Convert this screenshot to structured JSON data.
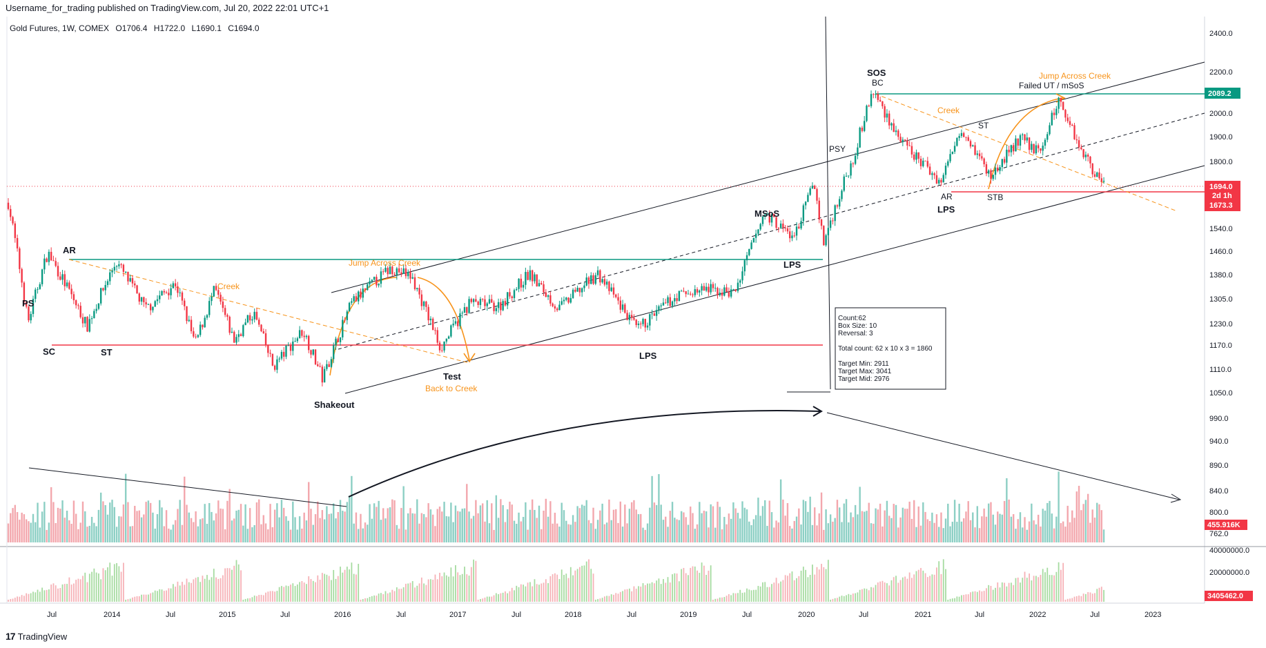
{
  "header": {
    "published": "Username_for_trading published on TradingView.com, Jul 20, 2022 22:01 UTC+1",
    "symbol": "Gold Futures, 1W, COMEX",
    "open": "O1706.4",
    "high": "H1722.0",
    "low": "L1690.1",
    "close": "C1694.0"
  },
  "footer": {
    "logo": "17",
    "brand": "TradingView"
  },
  "chart_data": {
    "type": "candlestick",
    "price_axis": {
      "labels": [
        "2400.0",
        "2200.0",
        "2089.2",
        "2000.0",
        "1900.0",
        "1800.0",
        "1694.0",
        "1673.3",
        "1540.0",
        "1460.0",
        "1380.0",
        "1305.0",
        "1230.0",
        "1170.0",
        "1110.0",
        "1050.0",
        "990.0",
        "940.0",
        "890.0",
        "840.0",
        "800.0",
        "762.0"
      ],
      "log_scale": true
    },
    "volume_axis_value": "455.916K",
    "indicator_axis": {
      "labels": [
        "40000000.0",
        "20000000.0"
      ],
      "current": "3405462.0"
    },
    "time_axis": [
      "Jul",
      "2014",
      "Jul",
      "2015",
      "Jul",
      "2016",
      "Jul",
      "2017",
      "Jul",
      "2018",
      "Jul",
      "2019",
      "Jul",
      "2020",
      "Jul",
      "2021",
      "Jul",
      "2022",
      "Jul",
      "2023"
    ],
    "tags": {
      "high_level": "2089.2",
      "last_price": "1694.0",
      "countdown": "2d 1h",
      "support_level": "1673.3"
    },
    "price_path": [
      [
        "2013-04",
        1600
      ],
      [
        "2013-06",
        1200
      ],
      [
        "2013-08",
        1420
      ],
      [
        "2013-12",
        1190
      ],
      [
        "2014-03",
        1390
      ],
      [
        "2014-06",
        1240
      ],
      [
        "2014-09",
        1320
      ],
      [
        "2014-11",
        1140
      ],
      [
        "2015-01",
        1300
      ],
      [
        "2015-03",
        1150
      ],
      [
        "2015-05",
        1230
      ],
      [
        "2015-07",
        1080
      ],
      [
        "2015-10",
        1180
      ],
      [
        "2015-12",
        1050
      ],
      [
        "2016-03",
        1260
      ],
      [
        "2016-07",
        1370
      ],
      [
        "2016-09",
        1340
      ],
      [
        "2016-12",
        1130
      ],
      [
        "2017-03",
        1260
      ],
      [
        "2017-06",
        1250
      ],
      [
        "2017-09",
        1350
      ],
      [
        "2017-12",
        1240
      ],
      [
        "2018-04",
        1350
      ],
      [
        "2018-08",
        1180
      ],
      [
        "2018-12",
        1280
      ],
      [
        "2019-03",
        1300
      ],
      [
        "2019-06",
        1290
      ],
      [
        "2019-09",
        1560
      ],
      [
        "2019-12",
        1470
      ],
      [
        "2020-02",
        1680
      ],
      [
        "2020-03",
        1450
      ],
      [
        "2020-06",
        1780
      ],
      [
        "2020-08",
        2089
      ],
      [
        "2020-11",
        1840
      ],
      [
        "2021-03",
        1680
      ],
      [
        "2021-05",
        1920
      ],
      [
        "2021-08",
        1700
      ],
      [
        "2021-11",
        1870
      ],
      [
        "2022-01",
        1800
      ],
      [
        "2022-03",
        2050
      ],
      [
        "2022-05",
        1840
      ],
      [
        "2022-07",
        1694
      ]
    ],
    "annotations": {
      "wyckoff_labels": [
        "PS",
        "SC",
        "AR",
        "ST",
        "Shakeout",
        "Test",
        "LPS",
        "MSoS",
        "LPS",
        "PSY",
        "SOS",
        "BC",
        "ST",
        "AR",
        "LPS",
        "STB"
      ],
      "orange_labels": [
        "Creek",
        "Jump Across Creek",
        "Back to Creek",
        "Creek",
        "Jump Across Creek"
      ],
      "failed_ut": "Failed UT / mSoS"
    },
    "pnf_box": [
      "Count:62",
      "Box Size: 10",
      "Reversal: 3",
      "Total count: 62 x 10 x 3 = 1860",
      "Target Min: 2911",
      "Target Max: 3041",
      "Target Mid: 2976"
    ]
  }
}
